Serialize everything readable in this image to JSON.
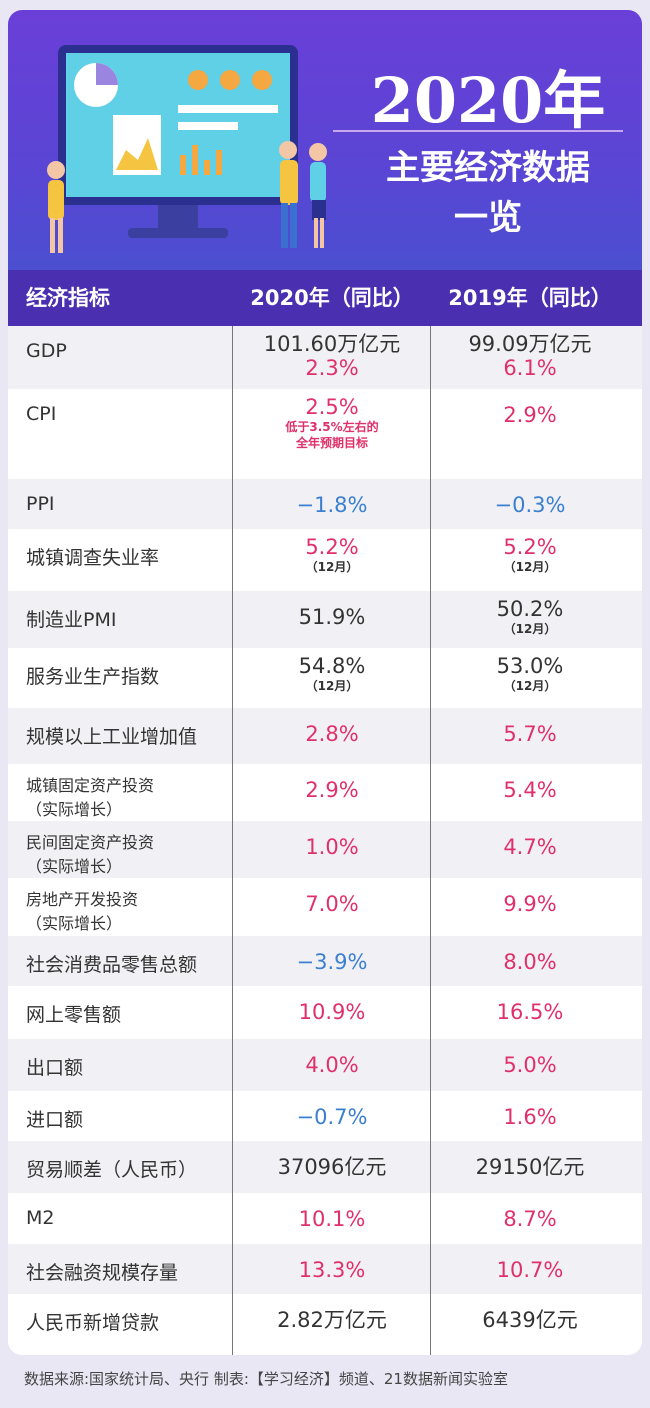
{
  "banner": {
    "title": "2020年",
    "subtitle": [
      "主要经济数据",
      "一览"
    ]
  },
  "table": {
    "header": [
      "经济指标",
      "2020年（同比）",
      "2019年（同比）"
    ],
    "rows": [
      {
        "indicator": [
          "GDP"
        ],
        "cells": [
          {
            "values": [
              {
                "text": "101.60万亿元",
                "color": "#333333"
              },
              {
                "text": "2.3%",
                "color": "#e0306a"
              }
            ]
          },
          {
            "values": [
              {
                "text": "99.09万亿元",
                "color": "#333333"
              },
              {
                "text": "6.1%",
                "color": "#e0306a"
              }
            ]
          }
        ]
      },
      {
        "indicator": [
          "CPI"
        ],
        "cells": [
          {
            "values": [
              {
                "text": "2.5%",
                "color": "#e0306a"
              }
            ],
            "note": [
              "低于3.5%左右的",
              "全年预期目标"
            ],
            "note_color": "#e0306a"
          },
          {
            "values": [
              {
                "text": "2.9%",
                "color": "#e0306a"
              }
            ]
          }
        ]
      },
      {
        "indicator": [
          "PPI"
        ],
        "cells": [
          {
            "values": [
              {
                "text": "−1.8%",
                "color": "#3a7fd0"
              }
            ]
          },
          {
            "values": [
              {
                "text": "−0.3%",
                "color": "#3a7fd0"
              }
            ]
          }
        ]
      },
      {
        "indicator": [
          "城镇调查失业率"
        ],
        "cells": [
          {
            "values": [
              {
                "text": "5.2%",
                "color": "#e0306a"
              }
            ],
            "note": [
              "（12月）"
            ],
            "note_color": "#333333"
          },
          {
            "values": [
              {
                "text": "5.2%",
                "color": "#e0306a"
              }
            ],
            "note": [
              "（12月）"
            ],
            "note_color": "#333333"
          }
        ]
      },
      {
        "indicator": [
          "制造业PMI"
        ],
        "cells": [
          {
            "values": [
              {
                "text": "51.9%",
                "color": "#333333"
              }
            ]
          },
          {
            "values": [
              {
                "text": "50.2%",
                "color": "#333333"
              }
            ],
            "note": [
              "（12月）"
            ],
            "note_color": "#333333"
          }
        ]
      },
      {
        "indicator": [
          "服务业生产指数"
        ],
        "cells": [
          {
            "values": [
              {
                "text": "54.8%",
                "color": "#333333"
              }
            ],
            "note": [
              "（12月）"
            ],
            "note_color": "#333333"
          },
          {
            "values": [
              {
                "text": "53.0%",
                "color": "#333333"
              }
            ],
            "note": [
              "（12月）"
            ],
            "note_color": "#333333"
          }
        ]
      },
      {
        "indicator": [
          "规模以上工业增加值"
        ],
        "cells": [
          {
            "values": [
              {
                "text": "2.8%",
                "color": "#e0306a"
              }
            ]
          },
          {
            "values": [
              {
                "text": "5.7%",
                "color": "#e0306a"
              }
            ]
          }
        ]
      },
      {
        "indicator": [
          "城镇固定资产投资",
          "（实际增长）"
        ],
        "cells": [
          {
            "values": [
              {
                "text": "2.9%",
                "color": "#e0306a"
              }
            ]
          },
          {
            "values": [
              {
                "text": "5.4%",
                "color": "#e0306a"
              }
            ]
          }
        ]
      },
      {
        "indicator": [
          "民间固定资产投资",
          "（实际增长）"
        ],
        "cells": [
          {
            "values": [
              {
                "text": "1.0%",
                "color": "#e0306a"
              }
            ]
          },
          {
            "values": [
              {
                "text": "4.7%",
                "color": "#e0306a"
              }
            ]
          }
        ]
      },
      {
        "indicator": [
          "房地产开发投资",
          "（实际增长）"
        ],
        "cells": [
          {
            "values": [
              {
                "text": "7.0%",
                "color": "#e0306a"
              }
            ]
          },
          {
            "values": [
              {
                "text": "9.9%",
                "color": "#e0306a"
              }
            ]
          }
        ]
      },
      {
        "indicator": [
          "社会消费品零售总额"
        ],
        "cells": [
          {
            "values": [
              {
                "text": "−3.9%",
                "color": "#3a7fd0"
              }
            ]
          },
          {
            "values": [
              {
                "text": "8.0%",
                "color": "#e0306a"
              }
            ]
          }
        ]
      },
      {
        "indicator": [
          "网上零售额"
        ],
        "cells": [
          {
            "values": [
              {
                "text": "10.9%",
                "color": "#e0306a"
              }
            ]
          },
          {
            "values": [
              {
                "text": "16.5%",
                "color": "#e0306a"
              }
            ]
          }
        ]
      },
      {
        "indicator": [
          "出口额"
        ],
        "cells": [
          {
            "values": [
              {
                "text": "4.0%",
                "color": "#e0306a"
              }
            ]
          },
          {
            "values": [
              {
                "text": "5.0%",
                "color": "#e0306a"
              }
            ]
          }
        ]
      },
      {
        "indicator": [
          "进口额"
        ],
        "cells": [
          {
            "values": [
              {
                "text": "−0.7%",
                "color": "#3a7fd0"
              }
            ]
          },
          {
            "values": [
              {
                "text": "1.6%",
                "color": "#e0306a"
              }
            ]
          }
        ]
      },
      {
        "indicator": [
          "贸易顺差（人民币）"
        ],
        "cells": [
          {
            "values": [
              {
                "text": "37096亿元",
                "color": "#333333"
              }
            ]
          },
          {
            "values": [
              {
                "text": "29150亿元",
                "color": "#333333"
              }
            ]
          }
        ]
      },
      {
        "indicator": [
          "M2"
        ],
        "cells": [
          {
            "values": [
              {
                "text": "10.1%",
                "color": "#e0306a"
              }
            ]
          },
          {
            "values": [
              {
                "text": "8.7%",
                "color": "#e0306a"
              }
            ]
          }
        ]
      },
      {
        "indicator": [
          "社会融资规模存量"
        ],
        "cells": [
          {
            "values": [
              {
                "text": "13.3%",
                "color": "#e0306a"
              }
            ]
          },
          {
            "values": [
              {
                "text": "10.7%",
                "color": "#e0306a"
              }
            ]
          }
        ]
      },
      {
        "indicator": [
          "人民币新增贷款"
        ],
        "cells": [
          {
            "values": [
              {
                "text": "2.82万亿元",
                "color": "#333333"
              }
            ]
          },
          {
            "values": [
              {
                "text": "6439亿元",
                "color": "#333333"
              }
            ]
          }
        ]
      }
    ]
  },
  "footer": "数据来源:国家统计局、央行  制表:【学习经济】频道、21数据新闻实验室"
}
